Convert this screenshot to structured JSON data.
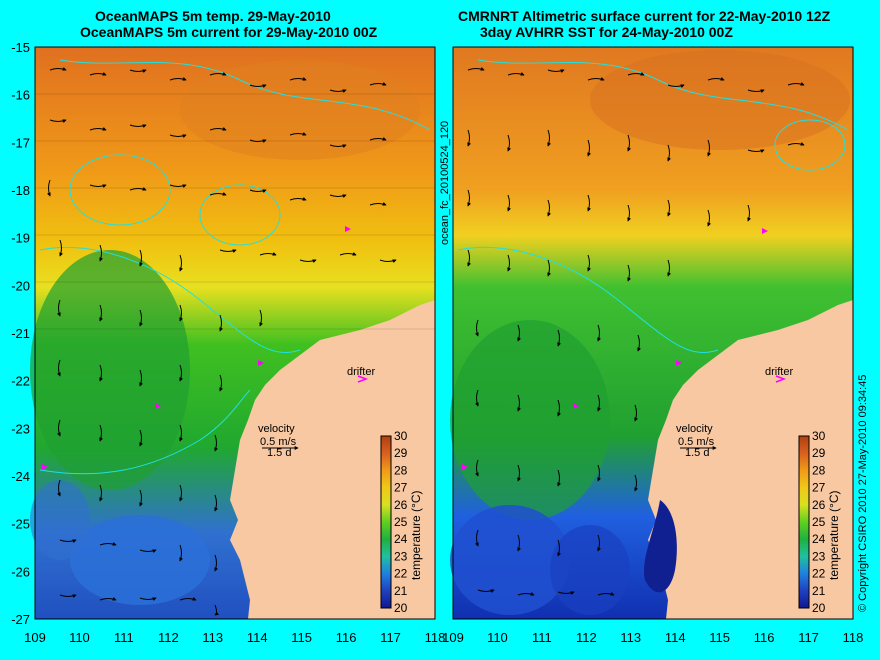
{
  "left_panel": {
    "title_line1": "OceanMAPS 5m temp. 29-May-2010",
    "title_line2": "OceanMAPS 5m current for 29-May-2010 00Z",
    "velocity_label": "velocity",
    "velocity_scale": "0.5 m/s",
    "velocity_days": "1.5 d",
    "drifter_label": "drifter",
    "colorbar_title": "temperature (°C)"
  },
  "right_panel": {
    "title_line1": "CMRNRT Altimetric surface current for 22-May-2010 12Z",
    "title_line2": "3day AVHRR SST for 24-May-2010 00Z",
    "velocity_label": "velocity",
    "velocity_scale": "0.5 m/s",
    "velocity_days": "1.5 d",
    "drifter_label": "drifter",
    "colorbar_title": "temperature (°C)"
  },
  "center_vertical_label": "ocean_fc_20100524_120",
  "right_vertical_label": "© Copyright CSIRO 2010   27-May-2010 09:34:45",
  "lat_ticks": [
    "-15",
    "-16",
    "-17",
    "-18",
    "-19",
    "-20",
    "-21",
    "-22",
    "-23",
    "-24",
    "-25",
    "-26",
    "-27"
  ],
  "lon_ticks": [
    "109",
    "110",
    "111",
    "112",
    "113",
    "114",
    "115",
    "116",
    "117",
    "118"
  ],
  "colorbar_ticks": [
    "30",
    "29",
    "28",
    "27",
    "26",
    "25",
    "24",
    "23",
    "22",
    "21",
    "20"
  ],
  "colors": {
    "background": "#00ffff",
    "land": "#f7c8a2",
    "drifter": "#ff00ff",
    "contour": "#20e0e0"
  }
}
